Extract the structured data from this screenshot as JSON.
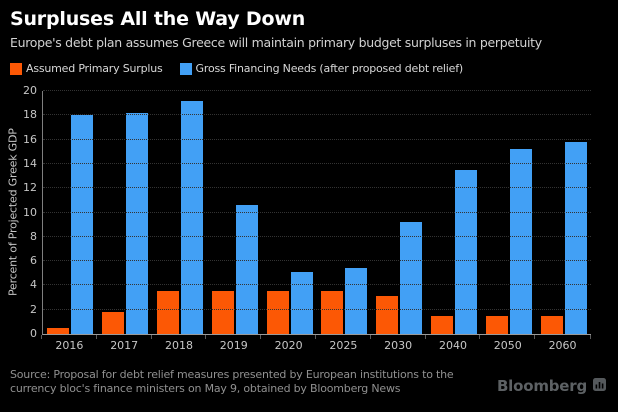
{
  "header": {
    "title": "Surpluses All the Way Down",
    "subtitle": "Europe's debt plan assumes Greece will maintain primary budget surpluses in perpetuity"
  },
  "chart_data": {
    "type": "bar",
    "categories": [
      "2016",
      "2017",
      "2018",
      "2019",
      "2020",
      "2025",
      "2030",
      "2040",
      "2050",
      "2060"
    ],
    "series": [
      {
        "name": "Assumed Primary Surplus",
        "color": "#fc5805",
        "values": [
          0.5,
          1.8,
          3.5,
          3.5,
          3.5,
          3.5,
          3.1,
          1.5,
          1.5,
          1.5
        ]
      },
      {
        "name": "Gross Financing Needs (after proposed debt relief)",
        "color": "#42a0f5",
        "values": [
          18.0,
          18.2,
          19.2,
          10.6,
          5.1,
          5.4,
          9.2,
          13.5,
          15.2,
          15.8
        ]
      }
    ],
    "title": "Surpluses All the Way Down",
    "xlabel": "",
    "ylabel": "Percent of Projected Greek GDP",
    "ylim": [
      0,
      20
    ],
    "ytick_step": 2,
    "grid": "horizontal-dotted",
    "legend_position": "top-left",
    "background": "#000000"
  },
  "footer": {
    "source_line1": "Source: Proposal for debt relief measures presented by European institutions to the",
    "source_line2": "currency bloc's finance ministers on May 9, obtained by Bloomberg News",
    "brand": "Bloomberg",
    "brand_icon": "bloomberg-terminal-icon"
  },
  "colors": {
    "background": "#000000",
    "title_text": "#ffffff",
    "subtitle_text": "#d2d2d2",
    "axis_text": "#c6c6c6",
    "gridline": "#333333",
    "axis_line": "#9a9a9a",
    "source_text": "#909090",
    "brand_text": "#5d6164",
    "surplus_orange": "#fc5805",
    "financing_blue": "#42a0f5"
  }
}
